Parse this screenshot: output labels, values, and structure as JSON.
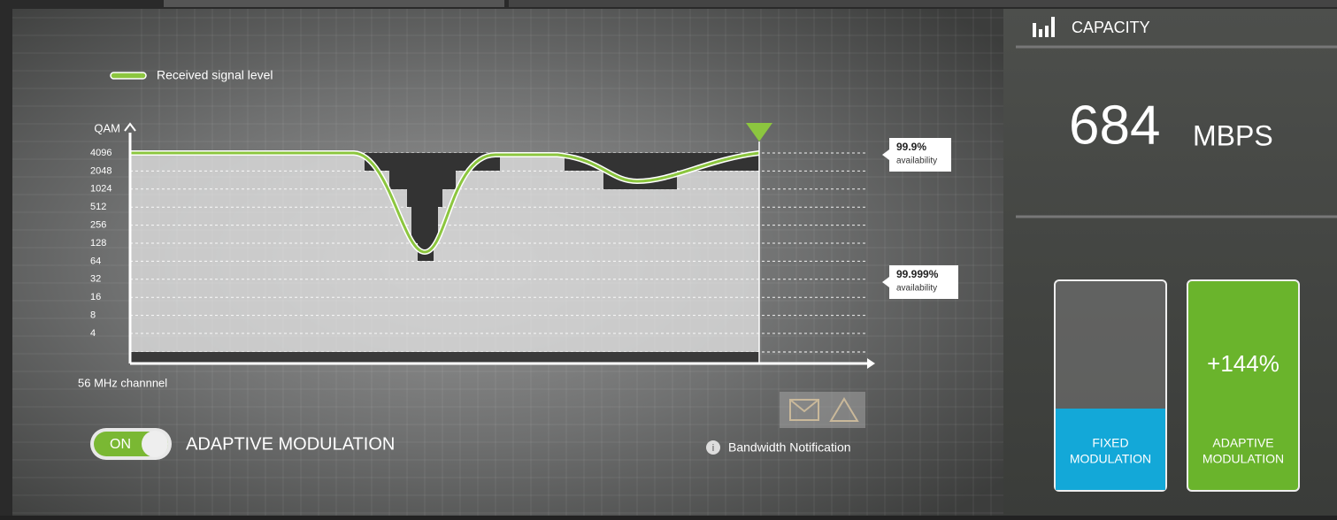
{
  "capacity": {
    "label": "CAPACITY",
    "value": "684",
    "unit": "MBPS"
  },
  "chart": {
    "legend": "Received signal level",
    "y_axis_label": "QAM",
    "y_ticks": [
      "4096",
      "2048",
      "1024",
      "512",
      "256",
      "128",
      "64",
      "32",
      "16",
      "8",
      "4"
    ],
    "x_axis_label": "56 MHz channnel",
    "annotations": [
      {
        "value": "99.9%",
        "text": "availability"
      },
      {
        "value": "99.999%",
        "text": "availability"
      }
    ]
  },
  "controls": {
    "toggle": "ON",
    "toggle_label": "ADAPTIVE MODULATION",
    "notification": "Bandwidth Notification"
  },
  "comparison": {
    "fixed": [
      "FIXED",
      "MODULATION"
    ],
    "adaptive_value": "+144%",
    "adaptive": [
      "ADAPTIVE",
      "MODULATION"
    ]
  }
}
